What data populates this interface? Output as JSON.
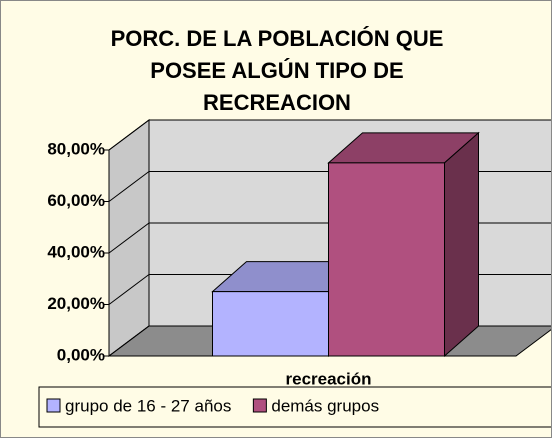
{
  "chart_data": {
    "type": "bar3d",
    "title": "PORC. DE LA POBLACIÓN QUE\nPOSEE ALGÚN TIPO DE\nRECREACION",
    "categories": [
      "recreación"
    ],
    "series": [
      {
        "name": "grupo de 16 - 27 años",
        "color": "#b3b3ff",
        "values": [
          25
        ]
      },
      {
        "name": "demás grupos",
        "color": "#b0507f",
        "values": [
          75
        ]
      }
    ],
    "ylim": [
      0,
      80
    ],
    "yticks": [
      {
        "value": 0,
        "label": "0,00%"
      },
      {
        "value": 20,
        "label": "20,00%"
      },
      {
        "value": 40,
        "label": "40,00%"
      },
      {
        "value": 60,
        "label": "60,00%"
      },
      {
        "value": 80,
        "label": "80,00%"
      }
    ],
    "grid": true,
    "legend": "bottom"
  }
}
